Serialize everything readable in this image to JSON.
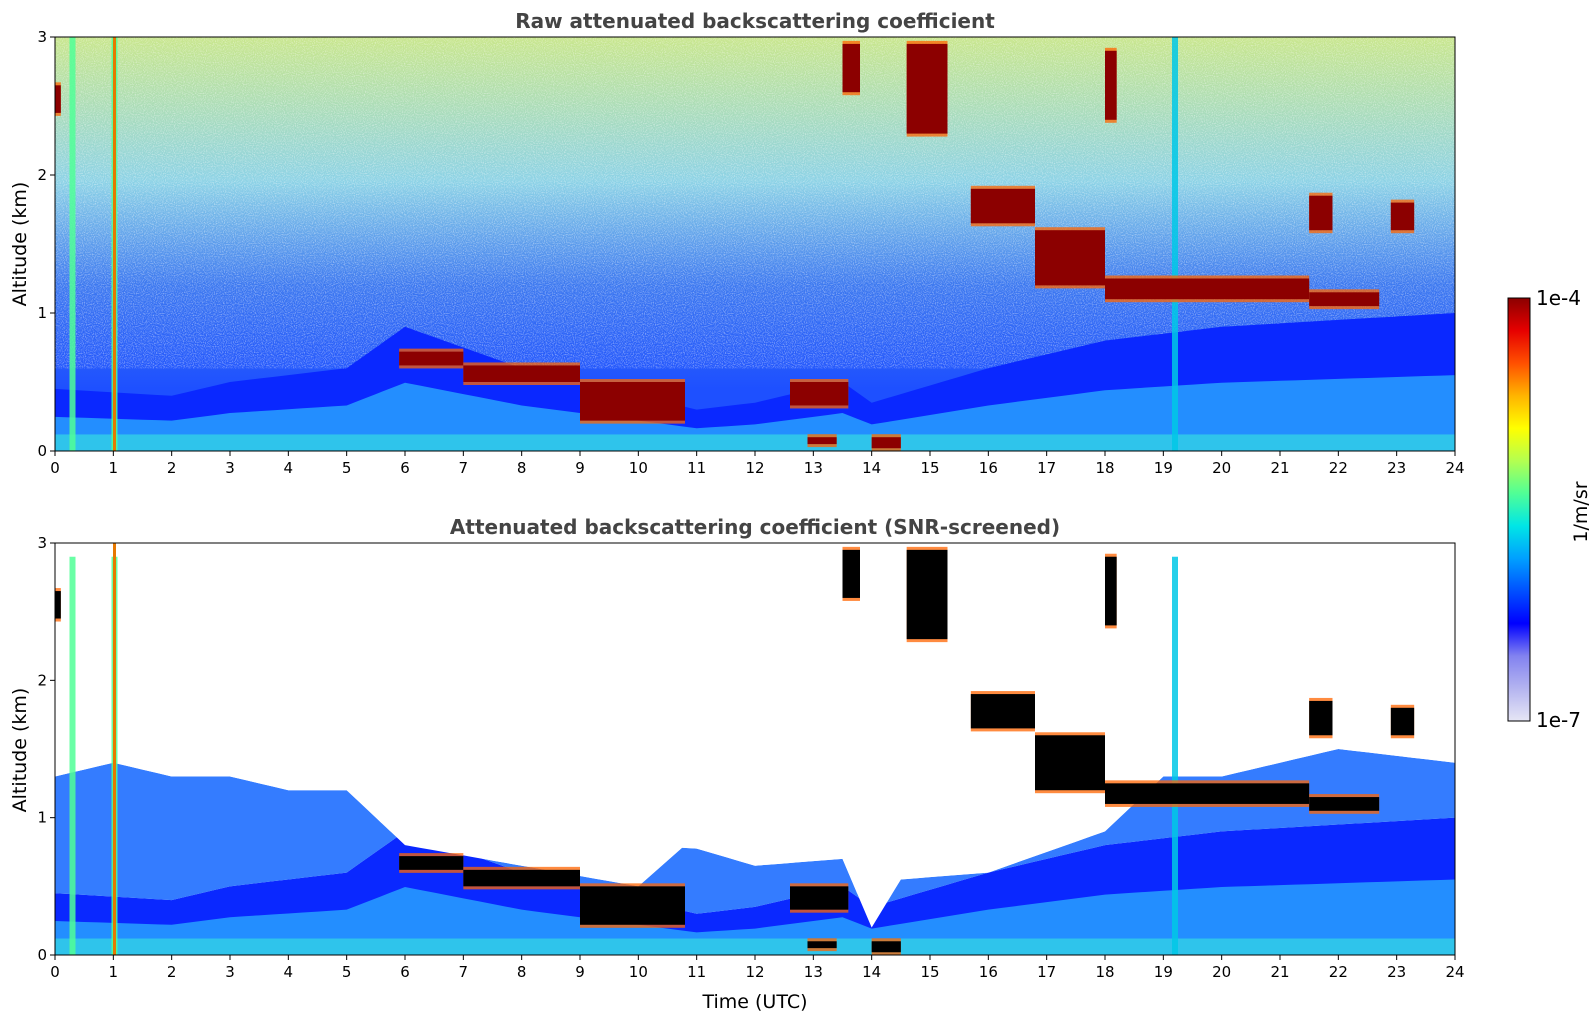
{
  "chart_data": [
    {
      "type": "heatmap",
      "title": "Raw attenuated backscattering coefficient",
      "xlabel": "",
      "ylabel": "Altitude (km)",
      "xlim": [
        0,
        24
      ],
      "ylim": [
        0,
        3
      ],
      "xticks": [
        "0",
        "1",
        "2",
        "3",
        "4",
        "5",
        "6",
        "7",
        "8",
        "9",
        "10",
        "11",
        "12",
        "13",
        "14",
        "15",
        "16",
        "17",
        "18",
        "19",
        "20",
        "21",
        "22",
        "23",
        "24"
      ],
      "yticks": [
        "0",
        "1",
        "2",
        "3"
      ],
      "grid": false,
      "layers": {
        "boundary_layer_top_km": [
          [
            0,
            0.45
          ],
          [
            2,
            0.4
          ],
          [
            3,
            0.5
          ],
          [
            4,
            0.55
          ],
          [
            5,
            0.6
          ],
          [
            6,
            0.9
          ],
          [
            8,
            0.6
          ],
          [
            10,
            0.4
          ],
          [
            11,
            0.3
          ],
          [
            12,
            0.35
          ],
          [
            13.5,
            0.5
          ],
          [
            14,
            0.35
          ],
          [
            16,
            0.6
          ],
          [
            18,
            0.8
          ],
          [
            20,
            0.9
          ],
          [
            22,
            0.95
          ],
          [
            24,
            1.0
          ]
        ],
        "cloud_layers": [
          {
            "t0": 0.0,
            "t1": 0.1,
            "z0": 2.45,
            "z1": 2.65
          },
          {
            "t0": 5.9,
            "t1": 7.0,
            "z0": 0.62,
            "z1": 0.72
          },
          {
            "t0": 7.0,
            "t1": 9.0,
            "z0": 0.5,
            "z1": 0.62
          },
          {
            "t0": 9.0,
            "t1": 10.8,
            "z0": 0.22,
            "z1": 0.5
          },
          {
            "t0": 12.6,
            "t1": 13.6,
            "z0": 0.33,
            "z1": 0.5
          },
          {
            "t0": 12.9,
            "t1": 13.4,
            "z0": 0.05,
            "z1": 0.1
          },
          {
            "t0": 14.0,
            "t1": 14.5,
            "z0": 0.02,
            "z1": 0.1
          },
          {
            "t0": 13.5,
            "t1": 13.8,
            "z0": 2.6,
            "z1": 2.95
          },
          {
            "t0": 14.6,
            "t1": 15.3,
            "z0": 2.3,
            "z1": 2.95
          },
          {
            "t0": 15.7,
            "t1": 16.8,
            "z0": 1.65,
            "z1": 1.9
          },
          {
            "t0": 16.8,
            "t1": 18.0,
            "z0": 1.2,
            "z1": 1.6
          },
          {
            "t0": 18.0,
            "t1": 19.5,
            "z0": 1.1,
            "z1": 1.25
          },
          {
            "t0": 19.5,
            "t1": 21.5,
            "z0": 1.1,
            "z1": 1.25
          },
          {
            "t0": 21.5,
            "t1": 22.7,
            "z0": 1.05,
            "z1": 1.15
          },
          {
            "t0": 21.5,
            "t1": 21.9,
            "z0": 1.6,
            "z1": 1.85
          },
          {
            "t0": 22.9,
            "t1": 23.3,
            "z0": 1.6,
            "z1": 1.8
          },
          {
            "t0": 18.0,
            "t1": 18.2,
            "z0": 2.4,
            "z1": 2.9
          }
        ],
        "aerosol_spikes_h": [
          0.3,
          1.02,
          19.2
        ]
      }
    },
    {
      "type": "heatmap",
      "title": "Attenuated backscattering coefficient (SNR-screened)",
      "xlabel": "Time (UTC)",
      "ylabel": "Altitude (km)",
      "xlim": [
        0,
        24
      ],
      "ylim": [
        0,
        3
      ],
      "xticks": [
        "0",
        "1",
        "2",
        "3",
        "4",
        "5",
        "6",
        "7",
        "8",
        "9",
        "10",
        "11",
        "12",
        "13",
        "14",
        "15",
        "16",
        "17",
        "18",
        "19",
        "20",
        "21",
        "22",
        "23",
        "24"
      ],
      "yticks": [
        "0",
        "1",
        "2",
        "3"
      ],
      "grid": false,
      "screened_top_km": [
        [
          0,
          1.3
        ],
        [
          1,
          1.4
        ],
        [
          2,
          1.3
        ],
        [
          3,
          1.3
        ],
        [
          4,
          1.2
        ],
        [
          5,
          1.2
        ],
        [
          6,
          0.8
        ],
        [
          8,
          0.65
        ],
        [
          10,
          0.5
        ],
        [
          10.8,
          0.8
        ],
        [
          12,
          0.65
        ],
        [
          13.5,
          0.7
        ],
        [
          14,
          0.2
        ],
        [
          14.5,
          0.55
        ],
        [
          16,
          0.6
        ],
        [
          18,
          0.9
        ],
        [
          19,
          1.3
        ],
        [
          20,
          1.3
        ],
        [
          22,
          1.5
        ],
        [
          24,
          1.4
        ]
      ]
    }
  ],
  "colorbar": {
    "label": "1/m/sr",
    "max_label": "1e-4",
    "min_label": "1e-7",
    "scale": "log",
    "colormap": "jet",
    "colors": [
      "#e6e6f5",
      "#b4b4f0",
      "#8282f0",
      "#0000ff",
      "#0050ff",
      "#00a0ff",
      "#00e6e6",
      "#50ff96",
      "#b4ff50",
      "#ffff00",
      "#ffb400",
      "#ff5000",
      "#e60000",
      "#8c0000"
    ]
  }
}
